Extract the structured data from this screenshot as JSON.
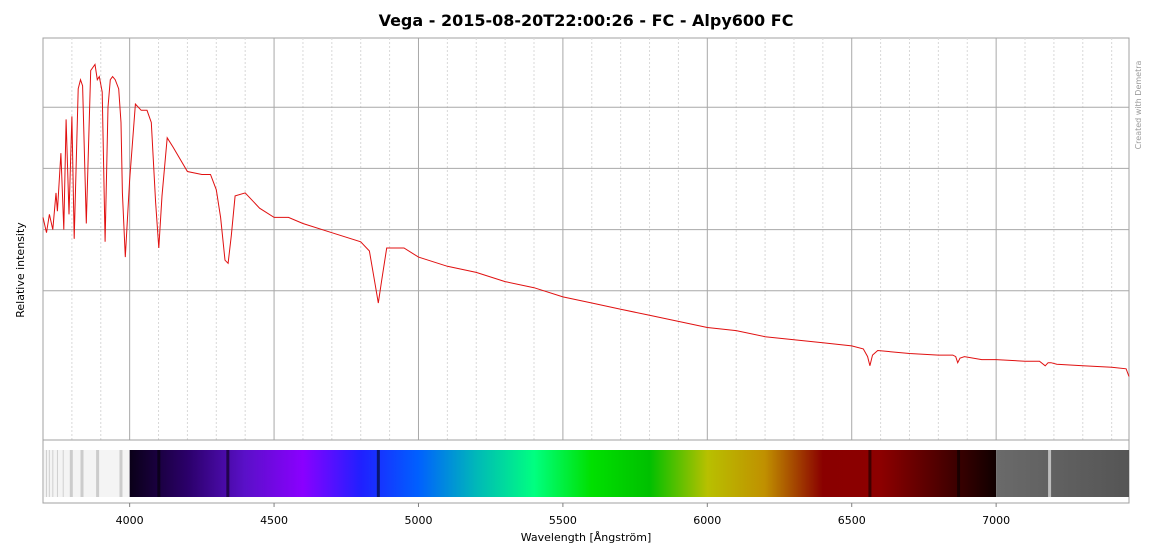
{
  "chart_data": {
    "type": "line",
    "title": "Vega - 2015-08-20T22:00:26 - FC - Alpy600 FC",
    "xlabel": "Wavelength [Ångström]",
    "ylabel": "Relative intensity",
    "credit": "Created with Demetra",
    "xlim": [
      3700,
      7460
    ],
    "ylim": [
      0,
      1.0
    ],
    "x_ticks": [
      4000,
      4500,
      5000,
      5500,
      6000,
      6500,
      7000
    ],
    "x_tick_labels": [
      "4000",
      "4500",
      "5000",
      "5500",
      "6000",
      "6500",
      "7000"
    ],
    "y_gridlines": [
      0.2,
      0.4,
      0.6,
      0.8
    ],
    "grid": true,
    "line_color": "#e01010",
    "series": [
      {
        "x": [
          3700,
          3712,
          3722,
          3734,
          3745,
          3750,
          3762,
          3772,
          3780,
          3790,
          3800,
          3808,
          3822,
          3830,
          3837,
          3850,
          3865,
          3880,
          3888,
          3895,
          3905,
          3915,
          3925,
          3933,
          3941,
          3950,
          3962,
          3970,
          3975,
          3985,
          4000,
          4020,
          4040,
          4060,
          4075,
          4090,
          4101,
          4112,
          4130,
          4150,
          4200,
          4250,
          4280,
          4300,
          4315,
          4330,
          4341,
          4352,
          4365,
          4400,
          4450,
          4500,
          4550,
          4600,
          4700,
          4800,
          4830,
          4850,
          4861,
          4872,
          4890,
          4950,
          5000,
          5100,
          5200,
          5300,
          5400,
          5500,
          5600,
          5700,
          5800,
          5900,
          6000,
          6100,
          6200,
          6300,
          6400,
          6500,
          6540,
          6555,
          6563,
          6572,
          6590,
          6700,
          6800,
          6850,
          6860,
          6867,
          6875,
          6890,
          6950,
          7000,
          7100,
          7150,
          7170,
          7180,
          7190,
          7210,
          7300,
          7400,
          7450,
          7460
        ],
        "y": [
          0.44,
          0.39,
          0.45,
          0.4,
          0.52,
          0.46,
          0.65,
          0.4,
          0.76,
          0.45,
          0.77,
          0.37,
          0.86,
          0.89,
          0.87,
          0.42,
          0.92,
          0.94,
          0.89,
          0.9,
          0.85,
          0.36,
          0.8,
          0.89,
          0.9,
          0.89,
          0.86,
          0.75,
          0.52,
          0.31,
          0.56,
          0.81,
          0.79,
          0.79,
          0.75,
          0.49,
          0.34,
          0.51,
          0.7,
          0.67,
          0.59,
          0.58,
          0.58,
          0.53,
          0.44,
          0.3,
          0.29,
          0.38,
          0.51,
          0.52,
          0.47,
          0.44,
          0.44,
          0.42,
          0.39,
          0.36,
          0.33,
          0.22,
          0.16,
          0.23,
          0.34,
          0.34,
          0.31,
          0.28,
          0.26,
          0.23,
          0.21,
          0.18,
          0.16,
          0.14,
          0.12,
          0.1,
          0.08,
          0.07,
          0.05,
          0.04,
          0.03,
          0.02,
          0.01,
          -0.015,
          -0.045,
          -0.01,
          0.005,
          -0.005,
          -0.01,
          -0.01,
          -0.015,
          -0.035,
          -0.02,
          -0.015,
          -0.025,
          -0.025,
          -0.03,
          -0.03,
          -0.045,
          -0.035,
          -0.035,
          -0.04,
          -0.045,
          -0.05,
          -0.055,
          -0.08
        ]
      }
    ],
    "spectrum_strip": {
      "x_start": 3700,
      "x_end": 7460,
      "visible_range": [
        4000,
        7000
      ],
      "colors": [
        "#0a0018",
        "#2b006a",
        "#5a10c8",
        "#8a00ff",
        "#2020ff",
        "#0060ff",
        "#00b8b8",
        "#00ff80",
        "#00e000",
        "#00c000",
        "#b8c000",
        "#c09000",
        "#8a0000",
        "#8c0000",
        "#500000",
        "#100000"
      ],
      "absorption_lines": [
        3798,
        3835,
        3889,
        3970,
        4101,
        4340,
        4861,
        6563,
        6870,
        7185
      ]
    }
  }
}
